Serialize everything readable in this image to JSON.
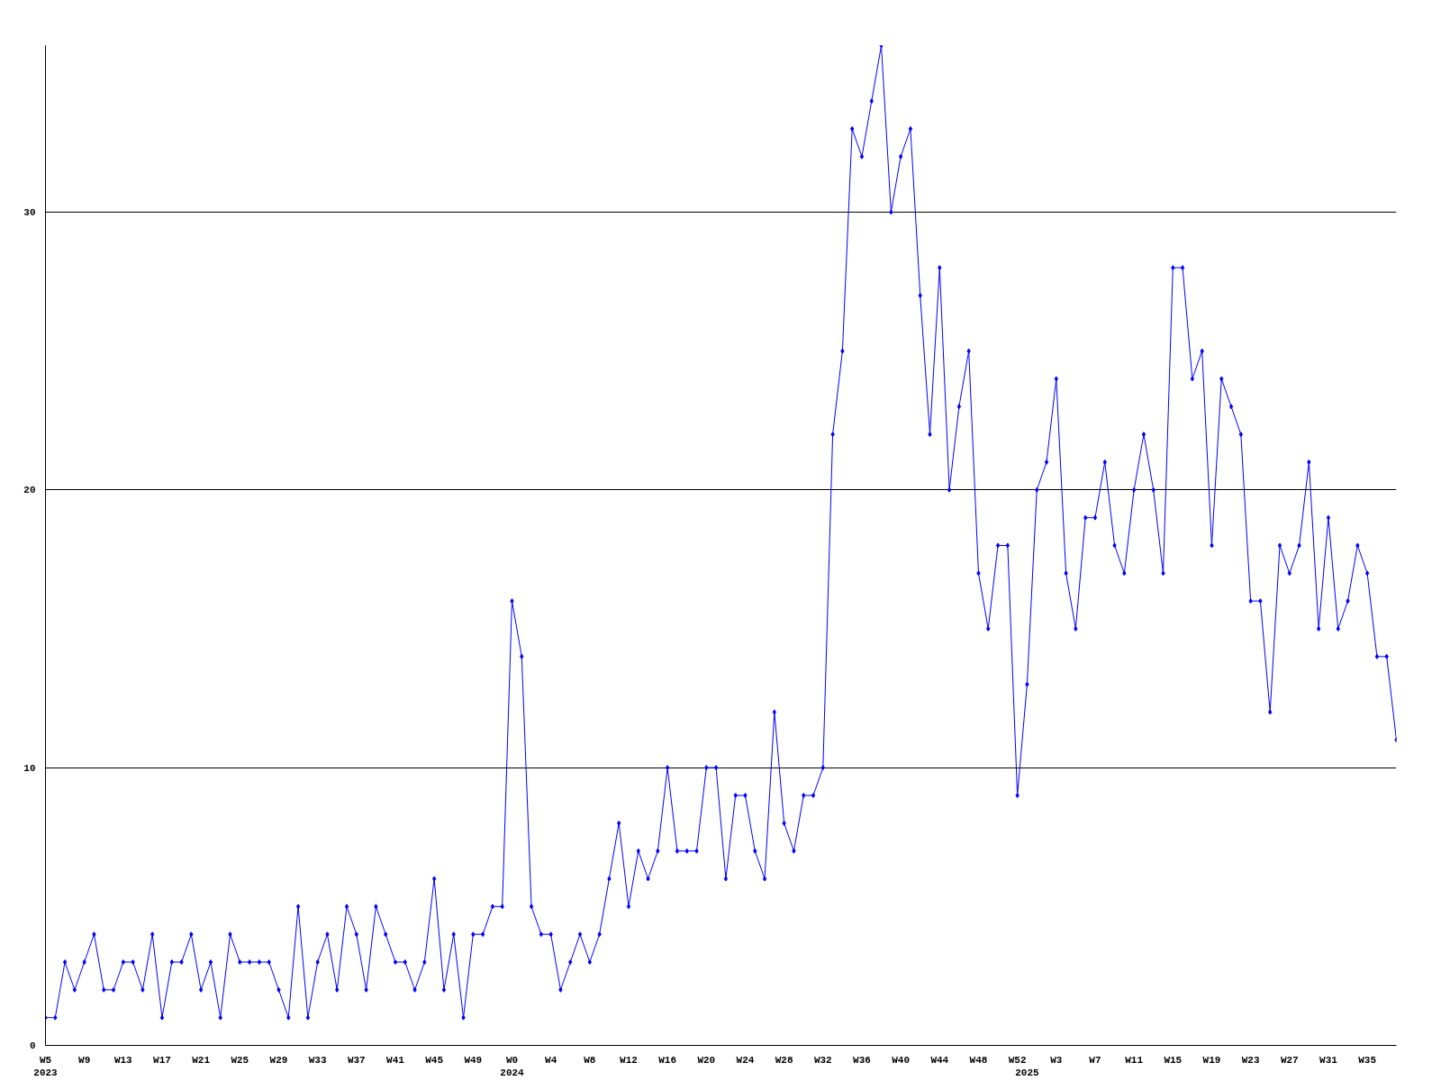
{
  "chart_data": {
    "type": "line",
    "categories": [
      "W5\n2023",
      null,
      null,
      null,
      "W9",
      null,
      null,
      null,
      "W13",
      null,
      null,
      null,
      "W17",
      null,
      null,
      null,
      "W21",
      null,
      null,
      null,
      "W25",
      null,
      null,
      null,
      "W29",
      null,
      null,
      null,
      "W33",
      null,
      null,
      null,
      "W37",
      null,
      null,
      null,
      "W41",
      null,
      null,
      null,
      "W45",
      null,
      null,
      null,
      "W49",
      null,
      null,
      null,
      "W0\n2024",
      null,
      null,
      null,
      "W4",
      null,
      null,
      null,
      "W8",
      null,
      null,
      null,
      "W12",
      null,
      null,
      null,
      "W16",
      null,
      null,
      null,
      "W20",
      null,
      null,
      null,
      "W24",
      null,
      null,
      null,
      "W28",
      null,
      null,
      null,
      "W32",
      null,
      null,
      null,
      "W36",
      null,
      null,
      null,
      "W40",
      null,
      null,
      null,
      "W44",
      null,
      null,
      null,
      "W48",
      null,
      null,
      null,
      "W52",
      " \n2025",
      null,
      null,
      "W3",
      null,
      null,
      null,
      "W7",
      null,
      null,
      null,
      "W11",
      null,
      null,
      null,
      "W15",
      null,
      null,
      null,
      "W19",
      null,
      null,
      null,
      "W23",
      null,
      null,
      null,
      "W27",
      null,
      null,
      null,
      "W31",
      null,
      null,
      null,
      "W35",
      null,
      null,
      null
    ],
    "series": [
      {
        "color": "#0000ff",
        "values": [
          1,
          1,
          3,
          2,
          3,
          4,
          2,
          2,
          3,
          3,
          2,
          4,
          1,
          3,
          3,
          4,
          2,
          3,
          1,
          4,
          3,
          3,
          3,
          3,
          2,
          1,
          5,
          1,
          3,
          4,
          2,
          5,
          4,
          2,
          5,
          4,
          3,
          3,
          2,
          3,
          6,
          2,
          4,
          1,
          4,
          4,
          5,
          5,
          16,
          14,
          5,
          4,
          4,
          2,
          3,
          4,
          3,
          4,
          6,
          8,
          5,
          7,
          6,
          7,
          10,
          7,
          7,
          7,
          10,
          10,
          6,
          9,
          9,
          7,
          6,
          12,
          8,
          7,
          9,
          9,
          10,
          22,
          25,
          33,
          32,
          34,
          36,
          30,
          32,
          33,
          27,
          22,
          28,
          20,
          23,
          25,
          17,
          15,
          18,
          18,
          9,
          13,
          20,
          21,
          24,
          17,
          15,
          19,
          19,
          21,
          18,
          17,
          20,
          22,
          20,
          17,
          28,
          28,
          24,
          25,
          18,
          24,
          23,
          22,
          16,
          16,
          12,
          18,
          17,
          18,
          21,
          15,
          19,
          15,
          16,
          18,
          17,
          14,
          14,
          11
        ]
      }
    ],
    "ylim": [
      0,
      36
    ],
    "yticks": [
      0,
      10,
      20,
      30
    ],
    "grid": "y",
    "marker": "diamond",
    "line_style": "solid"
  }
}
